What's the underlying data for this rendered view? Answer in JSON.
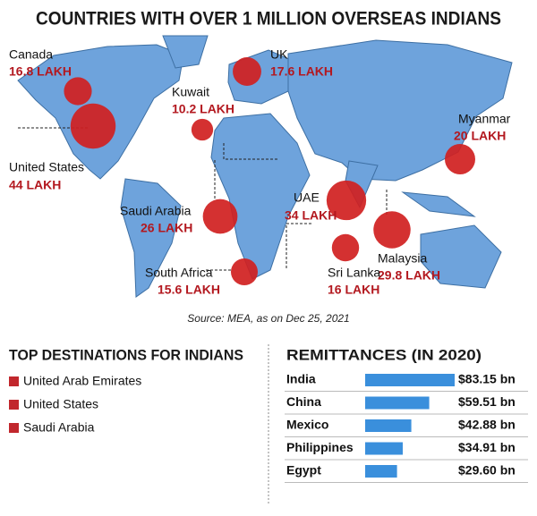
{
  "title": "COUNTRIES WITH OVER 1 MILLION OVERSEAS INDIANS",
  "source": "Source: MEA, as on Dec 25, 2021",
  "chart_data": [
    {
      "type": "bubble-map",
      "color": "#d01f1f",
      "categories": [
        "Canada",
        "UK",
        "Kuwait",
        "Myanmar",
        "United States",
        "Saudi Arabia",
        "UAE",
        "Malaysia",
        "Sri Lanka",
        "South Africa"
      ],
      "values": [
        16.8,
        17.6,
        10.2,
        20,
        44,
        26,
        34,
        29.8,
        16,
        15.6
      ],
      "value_labels": [
        "16.8 LAKH",
        "17.6 LAKH",
        "10.2 LAKH",
        "20 LAKH",
        "44 LAKH",
        "26 LAKH",
        "34 LAKH",
        "29.8 LAKH",
        "16 LAKH",
        "15.6 LAKH"
      ]
    },
    {
      "type": "bar",
      "title": "REMITTANCES (IN 2020)",
      "color": "#3a8fdc",
      "categories": [
        "India",
        "China",
        "Mexico",
        "Philippines",
        "Egypt"
      ],
      "values": [
        83.15,
        59.51,
        42.88,
        34.91,
        29.6
      ],
      "value_labels": [
        "$83.15 bn",
        "$59.51 bn",
        "$42.88 bn",
        "$34.91 bn",
        "$29.60 bn"
      ]
    }
  ],
  "top_destinations": {
    "title": "TOP DESTINATIONS FOR INDIANS",
    "items": [
      "United Arab Emirates",
      "United States",
      "Saudi Arabia"
    ]
  }
}
